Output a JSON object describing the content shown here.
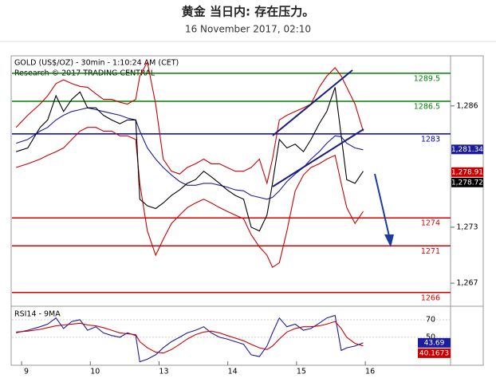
{
  "chart_data": [
    {
      "type": "line",
      "title": "黄金 当日内: 存在压力。",
      "subtitle": "16 November 2017, 02:10",
      "header_lines": [
        "GOLD (US$/OZ) - 30min - 1:10:24 AM (CET)",
        "Research © 2017 TRADING CENTRAL"
      ],
      "x": [
        -0.08,
        0.09,
        0.27,
        0.38,
        0.5,
        0.61,
        0.73,
        0.85,
        0.96,
        1.08,
        1.19,
        1.31,
        1.43,
        1.54,
        1.66,
        1.72,
        1.83,
        1.95,
        2.06,
        2.18,
        2.3,
        2.41,
        2.53,
        2.65,
        2.76,
        2.88,
        2.99,
        3.11,
        3.23,
        3.34,
        3.46,
        3.57,
        3.65,
        3.75,
        3.86,
        3.98,
        4.1,
        4.21,
        4.33,
        4.44,
        4.56,
        4.65,
        4.73,
        4.85,
        4.97
      ],
      "xlim": [
        -0.14,
        6.24
      ],
      "ylim": [
        1264.7,
        1291.2
      ],
      "yticks": [
        {
          "value": 1286,
          "label": "1,286"
        },
        {
          "value": 1273,
          "label": "1,273"
        },
        {
          "value": 1267,
          "label": "1,267"
        }
      ],
      "series": [
        {
          "color": "#cc0000",
          "values": [
            1283.7,
            1285.0,
            1286.2,
            1287.1,
            1288.4,
            1288.8,
            1288.4,
            1288.1,
            1288.0,
            1287.3,
            1286.7,
            1286.7,
            1286.4,
            1286.2,
            1286.7,
            1289.2,
            1290.7,
            1286.2,
            1280.3,
            1279.0,
            1278.7,
            1279.4,
            1279.8,
            1280.3,
            1279.8,
            1279.8,
            1279.4,
            1279.0,
            1279.0,
            1279.4,
            1280.3,
            1277.7,
            1280.3,
            1284.5,
            1285.0,
            1285.4,
            1285.8,
            1286.2,
            1288.0,
            1289.2,
            1290.1,
            1289.2,
            1288.0,
            1286.2,
            1283.3
          ]
        },
        {
          "color": "#cc0000",
          "values": [
            1279.4,
            1279.8,
            1280.3,
            1280.7,
            1281.1,
            1281.5,
            1282.4,
            1283.3,
            1283.7,
            1283.7,
            1283.3,
            1283.3,
            1282.8,
            1282.8,
            1282.4,
            1277.7,
            1272.6,
            1270.0,
            1271.7,
            1273.4,
            1274.3,
            1275.1,
            1275.6,
            1276.0,
            1275.6,
            1275.1,
            1274.7,
            1274.3,
            1273.9,
            1272.2,
            1270.9,
            1270.0,
            1268.7,
            1269.2,
            1272.6,
            1276.9,
            1278.6,
            1279.4,
            1279.8,
            1280.3,
            1280.7,
            1277.7,
            1275.1,
            1273.4,
            1274.7
          ]
        },
        {
          "color": "#1c1c9c",
          "values": [
            1282.0,
            1282.4,
            1283.3,
            1283.7,
            1284.5,
            1285.0,
            1285.4,
            1285.6,
            1285.8,
            1285.6,
            1285.4,
            1285.2,
            1285.0,
            1284.7,
            1284.5,
            1283.3,
            1281.5,
            1280.3,
            1279.4,
            1278.6,
            1277.9,
            1277.5,
            1277.5,
            1277.7,
            1277.7,
            1277.5,
            1277.3,
            1277.0,
            1276.9,
            1276.4,
            1276.2,
            1276.0,
            1276.2,
            1276.9,
            1277.9,
            1278.7,
            1279.4,
            1280.3,
            1281.1,
            1282.0,
            1282.8,
            1282.7,
            1282.0,
            1281.5,
            1281.3
          ]
        },
        {
          "color": "#000000",
          "values": [
            1281.1,
            1281.5,
            1283.7,
            1284.5,
            1287.1,
            1285.4,
            1286.7,
            1287.5,
            1285.8,
            1285.8,
            1285.0,
            1284.5,
            1284.1,
            1284.5,
            1284.5,
            1276.0,
            1275.3,
            1275.0,
            1275.6,
            1276.4,
            1277.0,
            1277.7,
            1278.1,
            1279.0,
            1278.4,
            1277.7,
            1277.0,
            1276.4,
            1276.0,
            1273.0,
            1272.6,
            1274.3,
            1277.7,
            1282.4,
            1281.5,
            1281.9,
            1281.1,
            1282.4,
            1284.1,
            1285.4,
            1288.0,
            1282.8,
            1278.1,
            1277.7,
            1279.0
          ]
        }
      ],
      "levels": [
        {
          "value": 1289.5,
          "color": "#008000"
        },
        {
          "value": 1286.5,
          "color": "#008000"
        },
        {
          "value": 1283,
          "color": "#0000b0"
        },
        {
          "value": 1274,
          "color": "#dd0000"
        },
        {
          "value": 1271,
          "color": "#dd0000"
        },
        {
          "value": 1266,
          "color": "#dd0000"
        }
      ],
      "last_values": [
        {
          "value": 1281.34,
          "label": "1,281.34",
          "color": "#1c1c9c"
        },
        {
          "value": 1278.91,
          "label": "1,278.91",
          "color": "#cc0000"
        },
        {
          "value": 1278.72,
          "label": "1,278.72",
          "color": "#000000"
        }
      ]
    },
    {
      "type": "line",
      "label": "RSI14 - 9MA",
      "x": [
        -0.08,
        0.09,
        0.27,
        0.38,
        0.5,
        0.61,
        0.73,
        0.85,
        0.96,
        1.08,
        1.19,
        1.31,
        1.43,
        1.54,
        1.66,
        1.72,
        1.83,
        1.95,
        2.06,
        2.18,
        2.3,
        2.41,
        2.53,
        2.65,
        2.76,
        2.88,
        2.99,
        3.11,
        3.23,
        3.34,
        3.46,
        3.57,
        3.65,
        3.75,
        3.86,
        3.98,
        4.1,
        4.21,
        4.33,
        4.44,
        4.56,
        4.65,
        4.73,
        4.85,
        4.97
      ],
      "xlim": [
        -0.14,
        6.24
      ],
      "xticks": [
        {
          "value": 0,
          "label": "9"
        },
        {
          "value": 1,
          "label": "10"
        },
        {
          "value": 2,
          "label": "13"
        },
        {
          "value": 3,
          "label": "14"
        },
        {
          "value": 4,
          "label": "15"
        },
        {
          "value": 5,
          "label": "16"
        }
      ],
      "ylim": [
        19,
        83.6
      ],
      "yticks": [
        70,
        50
      ],
      "series": [
        {
          "color": "#1c1c9c",
          "values": [
            55,
            58,
            62,
            65,
            72,
            60,
            68,
            70,
            58,
            62,
            55,
            52,
            50,
            55,
            52,
            22,
            25,
            30,
            38,
            45,
            50,
            55,
            58,
            62,
            55,
            50,
            48,
            45,
            42,
            30,
            28,
            40,
            55,
            72,
            62,
            65,
            58,
            60,
            66,
            72,
            75,
            35,
            38,
            40,
            43.69
          ]
        },
        {
          "color": "#cc0000",
          "values": [
            56,
            57,
            59,
            61,
            63,
            64,
            65,
            66,
            64,
            63,
            61,
            58,
            55,
            54,
            53,
            45,
            38,
            33,
            32,
            36,
            42,
            48,
            53,
            56,
            57,
            55,
            52,
            49,
            46,
            42,
            38,
            36,
            40,
            48,
            56,
            60,
            62,
            62,
            63,
            65,
            68,
            60,
            50,
            43,
            40.1673
          ]
        }
      ]
    }
  ]
}
